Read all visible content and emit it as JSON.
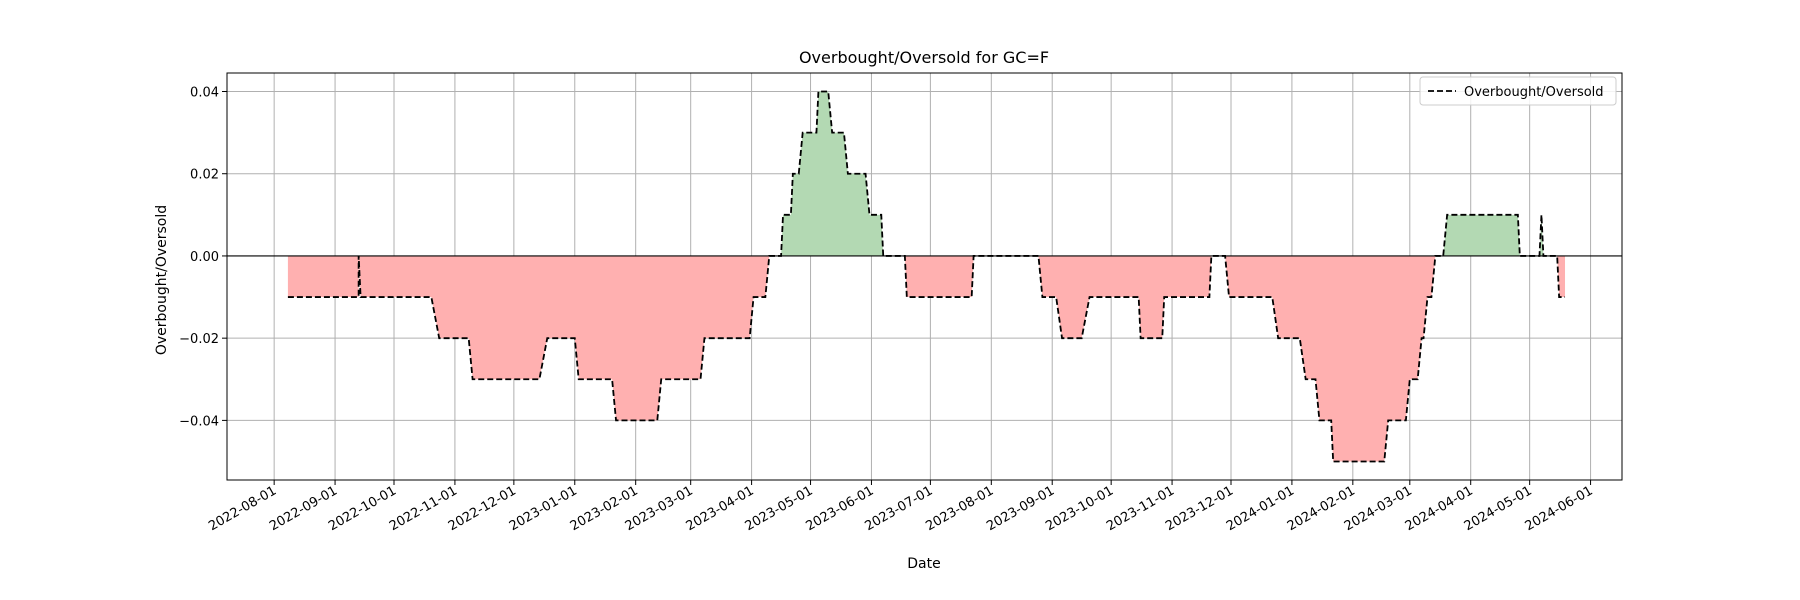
{
  "chart_data": {
    "type": "area",
    "title": "Overbought/Oversold for GC=F",
    "xlabel": "Date",
    "ylabel": "Overbought/Oversold",
    "xlim": [
      "2022-07-08",
      "2024-06-17"
    ],
    "ylim": [
      -0.0545,
      0.0445
    ],
    "grid": true,
    "legend_position": "top-right",
    "x_ticks": [
      "2022-08-01",
      "2022-09-01",
      "2022-10-01",
      "2022-11-01",
      "2022-12-01",
      "2023-01-01",
      "2023-02-01",
      "2023-03-01",
      "2023-04-01",
      "2023-05-01",
      "2023-06-01",
      "2023-07-01",
      "2023-08-01",
      "2023-09-01",
      "2023-10-01",
      "2023-11-01",
      "2023-12-01",
      "2024-01-01",
      "2024-02-01",
      "2024-03-01",
      "2024-04-01",
      "2024-05-01",
      "2024-06-01"
    ],
    "y_ticks": [
      -0.04,
      -0.02,
      0.0,
      0.02,
      0.04
    ],
    "y_tick_labels": [
      "−0.04",
      "−0.02",
      "0.00",
      "0.02",
      "0.04"
    ],
    "positive_fill_color": "#b3d9b3",
    "negative_fill_color": "#ffb0b0",
    "line_color": "#000000",
    "series": [
      {
        "name": "Overbought/Oversold",
        "style": "dashed",
        "points": [
          [
            "2022-08-08",
            -0.01
          ],
          [
            "2022-09-13",
            -0.01
          ],
          [
            "2022-09-13",
            0.0
          ],
          [
            "2022-09-14",
            -0.01
          ],
          [
            "2022-10-20",
            -0.01
          ],
          [
            "2022-10-24",
            -0.02
          ],
          [
            "2022-11-08",
            -0.02
          ],
          [
            "2022-11-10",
            -0.03
          ],
          [
            "2022-12-14",
            -0.03
          ],
          [
            "2022-12-18",
            -0.02
          ],
          [
            "2023-01-01",
            -0.02
          ],
          [
            "2023-01-03",
            -0.03
          ],
          [
            "2023-01-20",
            -0.03
          ],
          [
            "2023-01-22",
            -0.04
          ],
          [
            "2023-02-12",
            -0.04
          ],
          [
            "2023-02-14",
            -0.03
          ],
          [
            "2023-03-06",
            -0.03
          ],
          [
            "2023-03-08",
            -0.02
          ],
          [
            "2023-03-31",
            -0.02
          ],
          [
            "2023-04-02",
            -0.01
          ],
          [
            "2023-04-08",
            -0.01
          ],
          [
            "2023-04-10",
            0.0
          ],
          [
            "2023-04-16",
            0.0
          ],
          [
            "2023-04-17",
            0.01
          ],
          [
            "2023-04-21",
            0.01
          ],
          [
            "2023-04-22",
            0.02
          ],
          [
            "2023-04-25",
            0.02
          ],
          [
            "2023-04-27",
            0.03
          ],
          [
            "2023-05-04",
            0.03
          ],
          [
            "2023-05-05",
            0.04
          ],
          [
            "2023-05-10",
            0.04
          ],
          [
            "2023-05-12",
            0.03
          ],
          [
            "2023-05-18",
            0.03
          ],
          [
            "2023-05-20",
            0.02
          ],
          [
            "2023-05-29",
            0.02
          ],
          [
            "2023-05-31",
            0.01
          ],
          [
            "2023-06-06",
            0.01
          ],
          [
            "2023-06-07",
            0.0
          ],
          [
            "2023-06-18",
            0.0
          ],
          [
            "2023-06-19",
            -0.01
          ],
          [
            "2023-07-22",
            -0.01
          ],
          [
            "2023-07-23",
            0.0
          ],
          [
            "2023-08-25",
            0.0
          ],
          [
            "2023-08-27",
            -0.01
          ],
          [
            "2023-09-03",
            -0.01
          ],
          [
            "2023-09-06",
            -0.02
          ],
          [
            "2023-09-16",
            -0.02
          ],
          [
            "2023-09-20",
            -0.01
          ],
          [
            "2023-10-15",
            -0.01
          ],
          [
            "2023-10-16",
            -0.02
          ],
          [
            "2023-10-27",
            -0.02
          ],
          [
            "2023-10-28",
            -0.01
          ],
          [
            "2023-11-20",
            -0.01
          ],
          [
            "2023-11-21",
            0.0
          ],
          [
            "2023-11-28",
            0.0
          ],
          [
            "2023-11-30",
            -0.01
          ],
          [
            "2023-12-22",
            -0.01
          ],
          [
            "2023-12-25",
            -0.02
          ],
          [
            "2024-01-05",
            -0.02
          ],
          [
            "2024-01-08",
            -0.03
          ],
          [
            "2024-01-13",
            -0.03
          ],
          [
            "2024-01-15",
            -0.04
          ],
          [
            "2024-01-21",
            -0.04
          ],
          [
            "2024-01-22",
            -0.05
          ],
          [
            "2024-02-17",
            -0.05
          ],
          [
            "2024-02-19",
            -0.04
          ],
          [
            "2024-02-28",
            -0.04
          ],
          [
            "2024-03-01",
            -0.03
          ],
          [
            "2024-03-05",
            -0.03
          ],
          [
            "2024-03-07",
            -0.02
          ],
          [
            "2024-03-08",
            -0.02
          ],
          [
            "2024-03-10",
            -0.01
          ],
          [
            "2024-03-12",
            -0.01
          ],
          [
            "2024-03-14",
            0.0
          ],
          [
            "2024-03-18",
            0.0
          ],
          [
            "2024-03-20",
            0.01
          ],
          [
            "2024-04-25",
            0.01
          ],
          [
            "2024-04-26",
            0.0
          ],
          [
            "2024-05-06",
            0.0
          ],
          [
            "2024-05-07",
            0.01
          ],
          [
            "2024-05-08",
            0.0
          ],
          [
            "2024-05-15",
            0.0
          ],
          [
            "2024-05-16",
            -0.01
          ],
          [
            "2024-05-19",
            -0.01
          ]
        ]
      }
    ]
  }
}
